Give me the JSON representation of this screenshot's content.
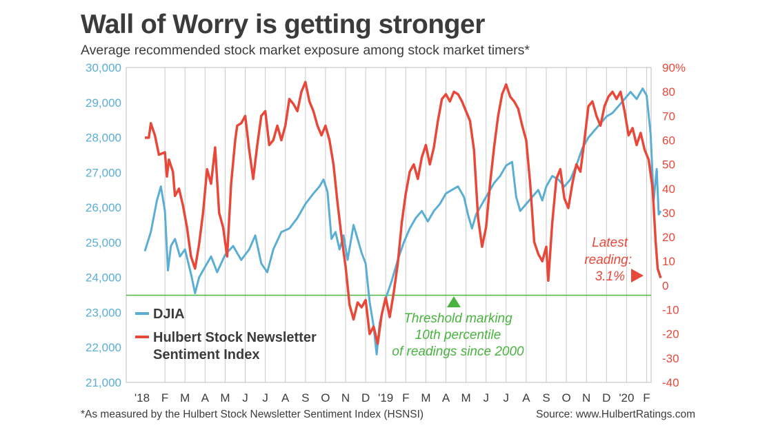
{
  "title": "Wall of Worry is getting stronger",
  "subtitle": "Average recommended stock market exposure among stock market timers*",
  "footnote": "*As measured by the Hulbert Stock Newsletter Sentiment Index (HSNSI)",
  "source": "Source: www.HulbertRatings.com",
  "colors": {
    "djia": "#5aaed3",
    "hsnsi": "#e8483a",
    "threshold": "#49b33f",
    "grid": "#c9c9c9",
    "text": "#3b3b3b"
  },
  "annotations": {
    "latest": [
      "Latest",
      "reading:",
      "3.1%"
    ],
    "threshold": [
      "Threshold marking",
      "10th percentile",
      "of readings since 2000"
    ]
  },
  "chart_data": {
    "type": "line",
    "title": "Wall of Worry is getting stronger",
    "subtitle": "Average recommended stock market exposure among stock market timers*",
    "x_ticks": [
      "'18",
      "F",
      "M",
      "A",
      "M",
      "J",
      "J",
      "A",
      "S",
      "O",
      "N",
      "D",
      "'19",
      "F",
      "M",
      "A",
      "M",
      "J",
      "J",
      "A",
      "S",
      "O",
      "N",
      "D",
      "'20",
      "F"
    ],
    "y_left": {
      "label": "DJIA",
      "lim": [
        21000,
        30000
      ],
      "ticks": [
        "30,000",
        "29,000",
        "28,000",
        "27,000",
        "26,000",
        "25,000",
        "24,000",
        "23,000",
        "22,000",
        "21,000"
      ]
    },
    "y_right": {
      "label": "Hulbert Stock Newsletter Sentiment Index",
      "lim": [
        -40,
        90
      ],
      "ticks": [
        "90%",
        "80",
        "70",
        "60",
        "50",
        "40",
        "30",
        "20",
        "10",
        "0",
        "-10",
        "-20",
        "-30",
        "-40"
      ]
    },
    "grid": "vertical",
    "legend_position": "lower-left",
    "threshold": {
      "value": -4,
      "axis": "right",
      "color": "#49b33f"
    },
    "latest_reading": 3.1,
    "x_unit": "months since Jan 2018",
    "series": [
      {
        "name": "DJIA",
        "axis": "left",
        "color": "#5aaed3",
        "points": [
          [
            0,
            24750
          ],
          [
            0.3,
            25300
          ],
          [
            0.6,
            26200
          ],
          [
            0.8,
            26600
          ],
          [
            1.0,
            25900
          ],
          [
            1.15,
            24200
          ],
          [
            1.3,
            24900
          ],
          [
            1.5,
            25100
          ],
          [
            1.75,
            24600
          ],
          [
            2.0,
            24800
          ],
          [
            2.3,
            24100
          ],
          [
            2.5,
            23550
          ],
          [
            2.7,
            24000
          ],
          [
            3.0,
            24300
          ],
          [
            3.3,
            24600
          ],
          [
            3.6,
            24150
          ],
          [
            4.0,
            24650
          ],
          [
            4.4,
            24900
          ],
          [
            4.8,
            24500
          ],
          [
            5.2,
            24800
          ],
          [
            5.5,
            25200
          ],
          [
            5.8,
            24400
          ],
          [
            6.1,
            24150
          ],
          [
            6.4,
            24800
          ],
          [
            6.8,
            25300
          ],
          [
            7.2,
            25400
          ],
          [
            7.6,
            25700
          ],
          [
            8.0,
            26100
          ],
          [
            8.4,
            26400
          ],
          [
            8.7,
            26600
          ],
          [
            8.9,
            26800
          ],
          [
            9.1,
            26450
          ],
          [
            9.3,
            25100
          ],
          [
            9.5,
            25300
          ],
          [
            9.7,
            24800
          ],
          [
            9.9,
            25200
          ],
          [
            10.1,
            24500
          ],
          [
            10.4,
            25500
          ],
          [
            10.6,
            25100
          ],
          [
            10.8,
            24700
          ],
          [
            11.0,
            24400
          ],
          [
            11.2,
            23300
          ],
          [
            11.4,
            22600
          ],
          [
            11.55,
            21800
          ],
          [
            11.7,
            22700
          ],
          [
            12.0,
            23400
          ],
          [
            12.3,
            23900
          ],
          [
            12.6,
            24500
          ],
          [
            12.9,
            25000
          ],
          [
            13.2,
            25400
          ],
          [
            13.5,
            25700
          ],
          [
            13.8,
            25900
          ],
          [
            14.1,
            25600
          ],
          [
            14.4,
            25900
          ],
          [
            14.7,
            26100
          ],
          [
            15.0,
            26400
          ],
          [
            15.3,
            26500
          ],
          [
            15.6,
            26600
          ],
          [
            15.9,
            26300
          ],
          [
            16.1,
            25800
          ],
          [
            16.3,
            25400
          ],
          [
            16.5,
            25800
          ],
          [
            16.8,
            26100
          ],
          [
            17.1,
            26400
          ],
          [
            17.4,
            26700
          ],
          [
            17.7,
            26900
          ],
          [
            18.0,
            27200
          ],
          [
            18.3,
            27300
          ],
          [
            18.5,
            26300
          ],
          [
            18.7,
            25900
          ],
          [
            19.0,
            26100
          ],
          [
            19.3,
            26300
          ],
          [
            19.6,
            26500
          ],
          [
            19.8,
            26200
          ],
          [
            20.0,
            26600
          ],
          [
            20.3,
            26900
          ],
          [
            20.6,
            26800
          ],
          [
            20.9,
            26600
          ],
          [
            21.2,
            26800
          ],
          [
            21.5,
            27200
          ],
          [
            21.8,
            27700
          ],
          [
            22.1,
            28000
          ],
          [
            22.4,
            28200
          ],
          [
            22.7,
            28400
          ],
          [
            23.0,
            28600
          ],
          [
            23.3,
            28700
          ],
          [
            23.6,
            28900
          ],
          [
            23.9,
            29100
          ],
          [
            24.2,
            29300
          ],
          [
            24.5,
            29100
          ],
          [
            24.8,
            29400
          ],
          [
            25.0,
            29200
          ],
          [
            25.2,
            28100
          ],
          [
            25.35,
            26200
          ],
          [
            25.5,
            27100
          ],
          [
            25.6,
            25800
          ],
          [
            25.7,
            25900
          ]
        ]
      },
      {
        "name": "Hulbert Stock Newsletter Sentiment Index",
        "axis": "right",
        "color": "#e8483a",
        "points": [
          [
            0,
            61
          ],
          [
            0.2,
            61
          ],
          [
            0.3,
            67
          ],
          [
            0.5,
            62
          ],
          [
            0.7,
            54
          ],
          [
            1.0,
            55
          ],
          [
            1.1,
            45
          ],
          [
            1.2,
            52
          ],
          [
            1.4,
            47
          ],
          [
            1.5,
            37
          ],
          [
            1.7,
            40
          ],
          [
            1.9,
            33
          ],
          [
            2.1,
            24
          ],
          [
            2.3,
            12
          ],
          [
            2.5,
            7
          ],
          [
            2.7,
            17
          ],
          [
            2.9,
            30
          ],
          [
            3.1,
            48
          ],
          [
            3.3,
            42
          ],
          [
            3.5,
            57
          ],
          [
            3.7,
            30
          ],
          [
            3.9,
            24
          ],
          [
            4.1,
            12
          ],
          [
            4.3,
            42
          ],
          [
            4.5,
            60
          ],
          [
            4.6,
            66
          ],
          [
            4.8,
            67
          ],
          [
            5.0,
            70
          ],
          [
            5.2,
            56
          ],
          [
            5.4,
            44
          ],
          [
            5.6,
            58
          ],
          [
            5.8,
            70
          ],
          [
            6.0,
            72
          ],
          [
            6.2,
            58
          ],
          [
            6.4,
            60
          ],
          [
            6.6,
            66
          ],
          [
            6.8,
            60
          ],
          [
            7.0,
            66
          ],
          [
            7.2,
            77
          ],
          [
            7.4,
            75
          ],
          [
            7.6,
            72
          ],
          [
            7.8,
            80
          ],
          [
            8.0,
            84
          ],
          [
            8.2,
            76
          ],
          [
            8.4,
            72
          ],
          [
            8.6,
            66
          ],
          [
            8.8,
            62
          ],
          [
            9.0,
            66
          ],
          [
            9.2,
            60
          ],
          [
            9.4,
            50
          ],
          [
            9.6,
            34
          ],
          [
            9.8,
            20
          ],
          [
            10.0,
            8
          ],
          [
            10.1,
            0
          ],
          [
            10.2,
            -8
          ],
          [
            10.4,
            -14
          ],
          [
            10.6,
            -7
          ],
          [
            10.8,
            -9
          ],
          [
            11.0,
            -6
          ],
          [
            11.2,
            -20
          ],
          [
            11.4,
            -17
          ],
          [
            11.6,
            -24
          ],
          [
            11.8,
            -12
          ],
          [
            12.0,
            -5
          ],
          [
            12.2,
            -13
          ],
          [
            12.4,
            -3
          ],
          [
            12.6,
            9
          ],
          [
            12.8,
            26
          ],
          [
            13.0,
            38
          ],
          [
            13.2,
            47
          ],
          [
            13.4,
            50
          ],
          [
            13.6,
            44
          ],
          [
            13.8,
            53
          ],
          [
            14.0,
            58
          ],
          [
            14.2,
            50
          ],
          [
            14.4,
            57
          ],
          [
            14.6,
            68
          ],
          [
            14.8,
            77
          ],
          [
            15.0,
            79
          ],
          [
            15.2,
            76
          ],
          [
            15.4,
            80
          ],
          [
            15.6,
            79
          ],
          [
            15.8,
            76
          ],
          [
            16.0,
            72
          ],
          [
            16.2,
            68
          ],
          [
            16.4,
            56
          ],
          [
            16.6,
            28
          ],
          [
            16.8,
            16
          ],
          [
            17.0,
            24
          ],
          [
            17.2,
            42
          ],
          [
            17.4,
            57
          ],
          [
            17.6,
            70
          ],
          [
            17.8,
            79
          ],
          [
            18.0,
            83
          ],
          [
            18.2,
            78
          ],
          [
            18.4,
            76
          ],
          [
            18.6,
            73
          ],
          [
            18.8,
            66
          ],
          [
            19.0,
            60
          ],
          [
            19.2,
            42
          ],
          [
            19.4,
            18
          ],
          [
            19.6,
            13
          ],
          [
            19.8,
            10
          ],
          [
            20.0,
            16
          ],
          [
            20.1,
            2
          ],
          [
            20.3,
            26
          ],
          [
            20.5,
            44
          ],
          [
            20.7,
            48
          ],
          [
            20.9,
            36
          ],
          [
            21.1,
            32
          ],
          [
            21.3,
            42
          ],
          [
            21.5,
            50
          ],
          [
            21.7,
            47
          ],
          [
            21.9,
            60
          ],
          [
            22.1,
            74
          ],
          [
            22.3,
            76
          ],
          [
            22.5,
            70
          ],
          [
            22.7,
            66
          ],
          [
            22.9,
            74
          ],
          [
            23.1,
            78
          ],
          [
            23.3,
            80
          ],
          [
            23.5,
            77
          ],
          [
            23.7,
            80
          ],
          [
            23.9,
            72
          ],
          [
            24.1,
            62
          ],
          [
            24.3,
            65
          ],
          [
            24.5,
            58
          ],
          [
            24.7,
            63
          ],
          [
            24.9,
            56
          ],
          [
            25.1,
            52
          ],
          [
            25.3,
            40
          ],
          [
            25.45,
            18
          ],
          [
            25.55,
            7
          ],
          [
            25.7,
            3.1
          ]
        ]
      }
    ]
  }
}
